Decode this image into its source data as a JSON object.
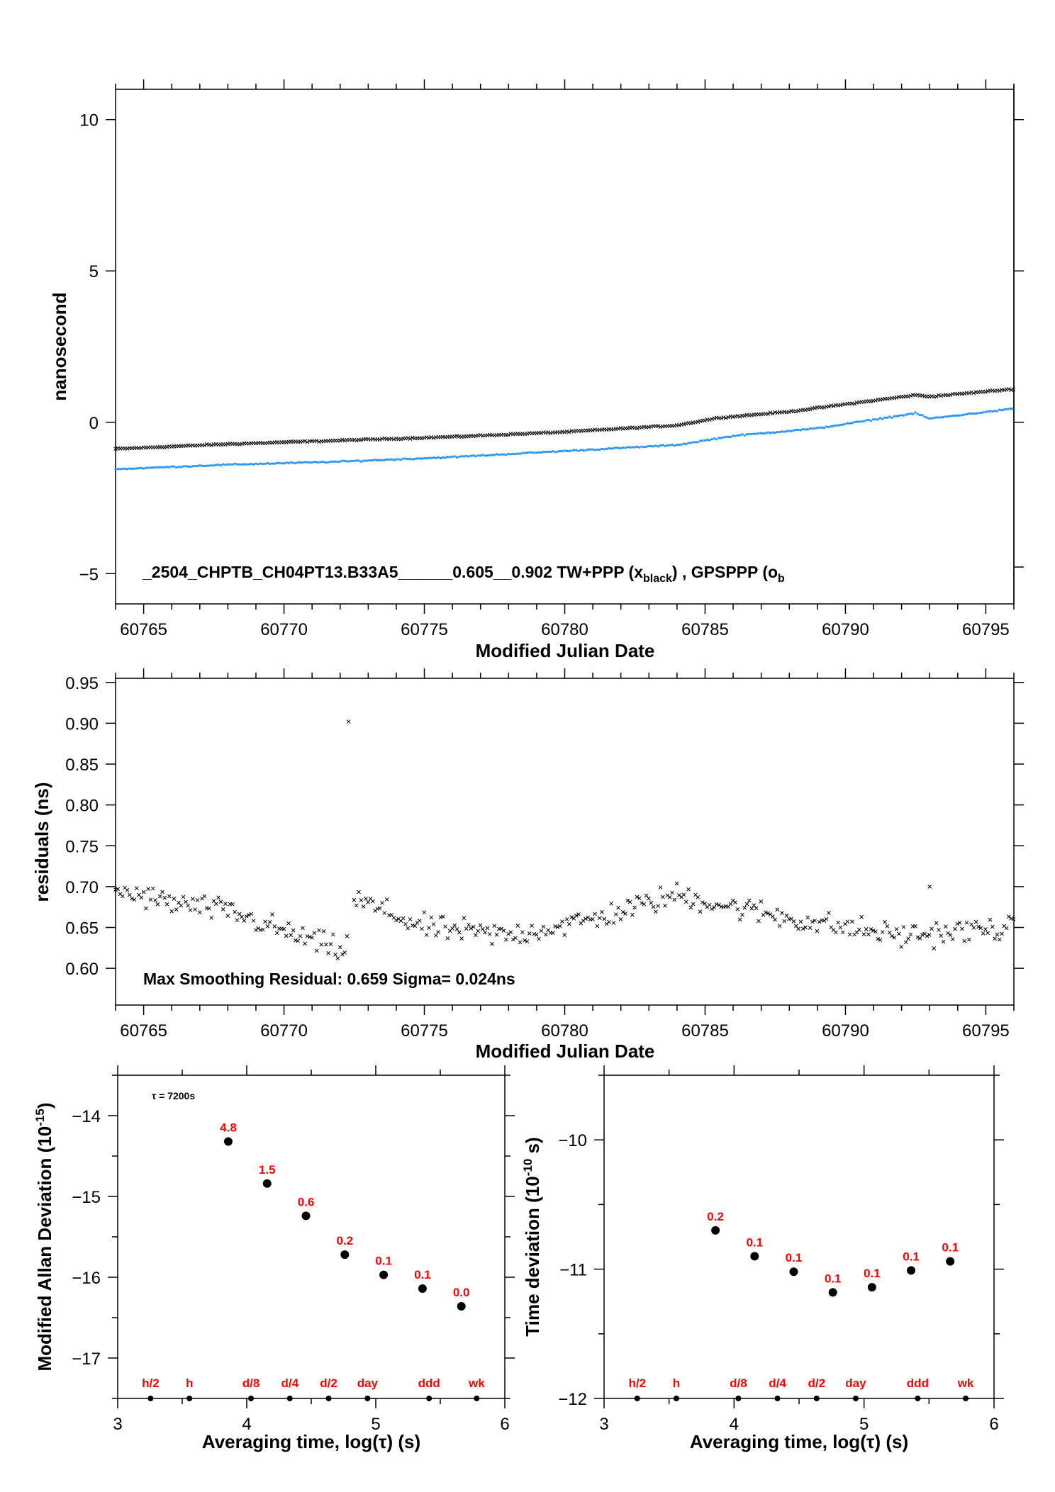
{
  "chart_data": [
    {
      "type": "scatter",
      "xlabel": "Modified Julian Date",
      "ylabel": "nanosecond",
      "xlim": [
        60764.0,
        60796.0
      ],
      "ylim": [
        -6.0,
        11.0
      ],
      "xticks": [
        "60765",
        "60770",
        "60775",
        "60780",
        "60785",
        "60790",
        "60795"
      ],
      "yticks": [
        "−5",
        "0",
        "5",
        "10"
      ],
      "annotation": {
        "text": "_2504_CHPTB_CH04PT13.B33A5______0.605__0.902     TW+PPP (x",
        "sub1": "black",
        "mid": ") ,  GPSPPP (o",
        "sub2": "b"
      },
      "series": [
        {
          "marker": "x",
          "color": "#000000",
          "anchors": [
            [
              60764.0,
              -0.88
            ],
            [
              60768.0,
              -0.72
            ],
            [
              60772.0,
              -0.6
            ],
            [
              60776.0,
              -0.48
            ],
            [
              60780.0,
              -0.32
            ],
            [
              60784.0,
              -0.1
            ],
            [
              60785.5,
              0.15
            ],
            [
              60788.0,
              0.35
            ],
            [
              60792.5,
              0.9
            ],
            [
              60793.0,
              0.85
            ],
            [
              60796.0,
              1.1
            ]
          ]
        },
        {
          "marker": "o",
          "color": "#1e90ff",
          "anchors": [
            [
              60764.0,
              -1.55
            ],
            [
              60768.0,
              -1.4
            ],
            [
              60772.0,
              -1.3
            ],
            [
              60776.0,
              -1.15
            ],
            [
              60780.0,
              -0.95
            ],
            [
              60784.0,
              -0.75
            ],
            [
              60786.0,
              -0.45
            ],
            [
              60789.0,
              -0.2
            ],
            [
              60792.5,
              0.3
            ],
            [
              60793.0,
              0.12
            ],
            [
              60796.0,
              0.45
            ]
          ]
        }
      ]
    },
    {
      "type": "scatter",
      "xlabel": "Modified Julian Date",
      "ylabel": "residuals (ns)",
      "xlim": [
        60764.0,
        60796.0
      ],
      "ylim": [
        0.555,
        0.955
      ],
      "xticks": [
        "60765",
        "60770",
        "60775",
        "60780",
        "60785",
        "60790",
        "60795"
      ],
      "yticks": [
        "0.60",
        "0.65",
        "0.70",
        "0.75",
        "0.80",
        "0.85",
        "0.90",
        "0.95"
      ],
      "annotation": "Max Smoothing Residual: 0.659  Sigma= 0.024ns",
      "outliers": [
        [
          60772.3,
          0.902
        ],
        [
          60793.0,
          0.7
        ]
      ],
      "series": [
        {
          "marker": "x",
          "color": "#000000",
          "anchors": [
            [
              60764.0,
              0.695
            ],
            [
              60766.0,
              0.68
            ],
            [
              60768.0,
              0.67
            ],
            [
              60770.0,
              0.645
            ],
            [
              60772.2,
              0.62
            ],
            [
              60772.5,
              0.685
            ],
            [
              60775.0,
              0.65
            ],
            [
              60778.0,
              0.64
            ],
            [
              60781.0,
              0.66
            ],
            [
              60784.0,
              0.69
            ],
            [
              60786.0,
              0.675
            ],
            [
              60789.0,
              0.655
            ],
            [
              60792.0,
              0.64
            ],
            [
              60796.0,
              0.65
            ]
          ]
        }
      ]
    },
    {
      "type": "scatter",
      "xlabel": "Averaging time, log(τ) (s)",
      "ylabel": "Modified Allan Deviation (10",
      "ylabel_sup": "-15",
      "ylabel_end": ")",
      "xlim": [
        3,
        6
      ],
      "ylim": [
        -17.5,
        -13.5
      ],
      "xticks": [
        "3",
        "4",
        "5",
        "6"
      ],
      "yticks": [
        "−17",
        "−16",
        "−15",
        "−14"
      ],
      "note": "τ = 7200s",
      "points": [
        {
          "x": 3.857,
          "y": -14.32,
          "label": "4.8"
        },
        {
          "x": 4.158,
          "y": -14.84,
          "label": "1.5"
        },
        {
          "x": 4.459,
          "y": -15.24,
          "label": "0.6"
        },
        {
          "x": 4.76,
          "y": -15.72,
          "label": "0.2"
        },
        {
          "x": 5.061,
          "y": -15.97,
          "label": "0.1"
        },
        {
          "x": 5.362,
          "y": -16.14,
          "label": "0.1"
        },
        {
          "x": 5.663,
          "y": -16.36,
          "label": "0.0"
        }
      ],
      "time_markers": [
        {
          "x": 3.255,
          "label": "h/2"
        },
        {
          "x": 3.556,
          "label": "h"
        },
        {
          "x": 4.033,
          "label": "d/8"
        },
        {
          "x": 4.334,
          "label": "d/4"
        },
        {
          "x": 4.635,
          "label": "d/2"
        },
        {
          "x": 4.936,
          "label": "day"
        },
        {
          "x": 5.413,
          "label": "ddd"
        },
        {
          "x": 5.782,
          "label": "wk"
        }
      ]
    },
    {
      "type": "scatter",
      "xlabel": "Averaging time, log(τ) (s)",
      "ylabel": "Time deviation (10",
      "ylabel_sup": "-10",
      "ylabel_end": " s)",
      "xlim": [
        3,
        6
      ],
      "ylim": [
        -12.0,
        -9.5
      ],
      "xticks": [
        "3",
        "4",
        "5",
        "6"
      ],
      "yticks": [
        "−12",
        "−11",
        "−10"
      ],
      "points": [
        {
          "x": 3.857,
          "y": -10.7,
          "label": "0.2"
        },
        {
          "x": 4.158,
          "y": -10.9,
          "label": "0.1"
        },
        {
          "x": 4.459,
          "y": -11.02,
          "label": "0.1"
        },
        {
          "x": 4.76,
          "y": -11.18,
          "label": "0.1"
        },
        {
          "x": 5.061,
          "y": -11.14,
          "label": "0.1"
        },
        {
          "x": 5.362,
          "y": -11.01,
          "label": "0.1"
        },
        {
          "x": 5.663,
          "y": -10.94,
          "label": "0.1"
        }
      ],
      "time_markers": [
        {
          "x": 3.255,
          "label": "h/2"
        },
        {
          "x": 3.556,
          "label": "h"
        },
        {
          "x": 4.033,
          "label": "d/8"
        },
        {
          "x": 4.334,
          "label": "d/4"
        },
        {
          "x": 4.635,
          "label": "d/2"
        },
        {
          "x": 4.936,
          "label": "day"
        },
        {
          "x": 5.413,
          "label": "ddd"
        },
        {
          "x": 5.782,
          "label": "wk"
        }
      ]
    }
  ]
}
